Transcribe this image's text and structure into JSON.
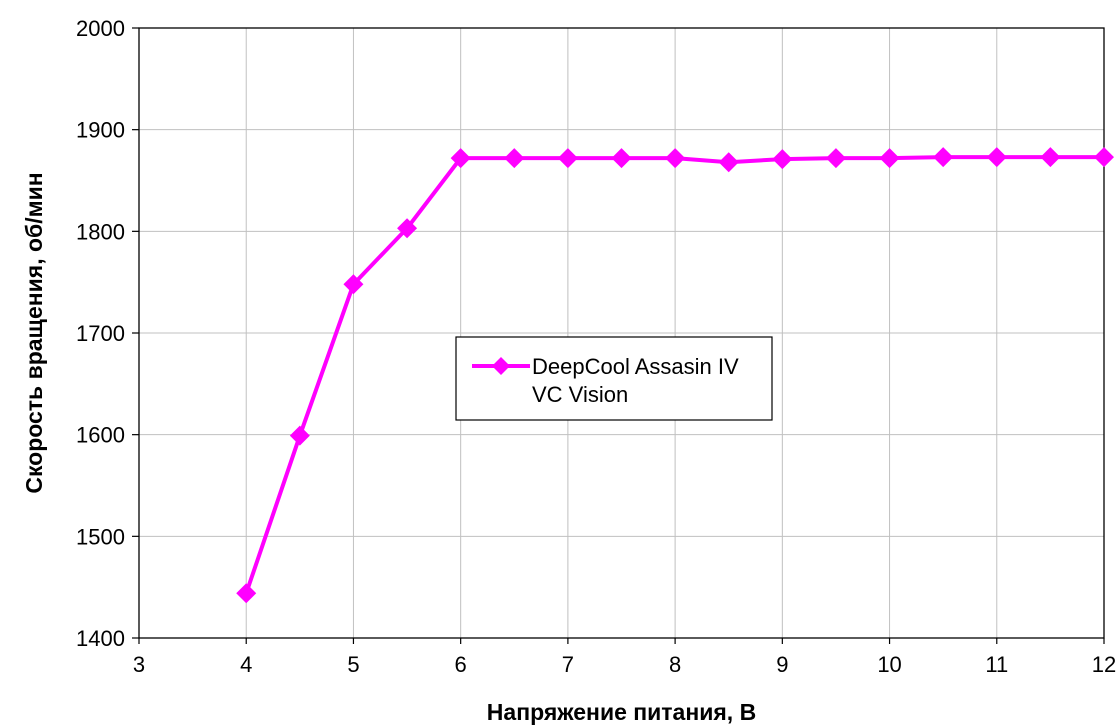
{
  "chart_data": {
    "type": "line",
    "title": "",
    "xlabel": "Напряжение питания, В",
    "ylabel": "Скорость вращения, об/мин",
    "xlim": [
      3,
      12
    ],
    "ylim": [
      1400,
      2000
    ],
    "x_ticks": [
      "3",
      "4",
      "5",
      "6",
      "7",
      "8",
      "9",
      "10",
      "11",
      "12"
    ],
    "y_ticks": [
      "1400",
      "1500",
      "1600",
      "1700",
      "1800",
      "1900",
      "2000"
    ],
    "grid": true,
    "legend": {
      "placement": "center",
      "entries": [
        {
          "name_lines": [
            "DeepCool Assasin IV",
            "VC Vision"
          ]
        }
      ]
    },
    "series": [
      {
        "name": "DeepCool Assasin IV VC Vision",
        "color": "#ff00ff",
        "marker": "diamond",
        "x": [
          4,
          4.5,
          5,
          5.5,
          6,
          6.5,
          7,
          7.5,
          8,
          8.5,
          9,
          9.5,
          10,
          10.5,
          11,
          11.5,
          12
        ],
        "y": [
          1444,
          1599,
          1748,
          1803,
          1872,
          1872,
          1872,
          1872,
          1872,
          1868,
          1871,
          1872,
          1872,
          1873,
          1873,
          1873,
          1873
        ]
      }
    ]
  }
}
